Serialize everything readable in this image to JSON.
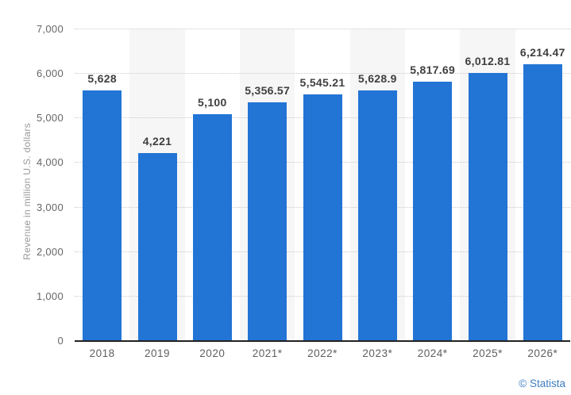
{
  "chart_data": {
    "type": "bar",
    "title": "",
    "xlabel": "",
    "ylabel": "Revenue in million U.S. dollars",
    "categories": [
      "2018",
      "2019",
      "2020",
      "2021*",
      "2022*",
      "2023*",
      "2024*",
      "2025*",
      "2026*"
    ],
    "values": [
      5628,
      4221,
      5100,
      5356.57,
      5545.21,
      5628.9,
      5817.69,
      6012.81,
      6214.47
    ],
    "value_labels": [
      "5,628",
      "4,221",
      "5,100",
      "5,356.57",
      "5,545.21",
      "5,628.9",
      "5,817.69",
      "6,012.81",
      "6,214.47"
    ],
    "ylim": [
      0,
      7000
    ],
    "ytick_values": [
      0,
      1000,
      2000,
      3000,
      4000,
      5000,
      6000,
      7000
    ],
    "ytick_labels": [
      "0",
      "1,000",
      "2,000",
      "3,000",
      "4,000",
      "5,000",
      "6,000",
      "7,000"
    ],
    "grid": "horizontal-dotted",
    "legend": "none",
    "shaded_columns": [
      1,
      3,
      5,
      7
    ],
    "colors": {
      "bar": "#2274d5",
      "column_band": "#f6f6f6",
      "gridline": "#c9c9c9",
      "axis_line": "#222222",
      "tick_text": "#666666",
      "value_label_text": "#3f3f3f",
      "axis_title_text": "#999999"
    }
  },
  "footer": {
    "attribution": "© Statista",
    "attribution_color": "#3f7cbf"
  }
}
